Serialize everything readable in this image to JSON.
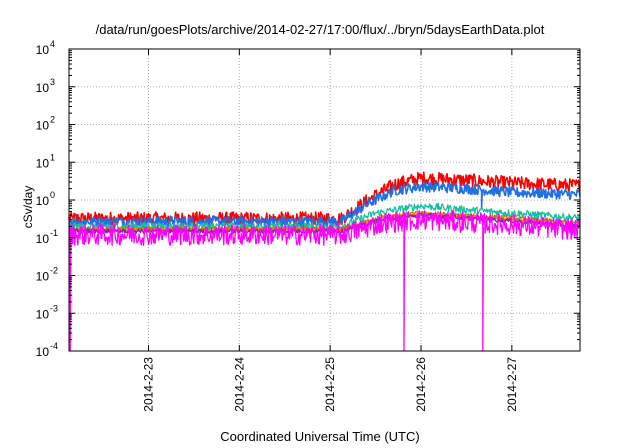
{
  "chart_data": {
    "type": "line",
    "title": "/data/run/goesPlots/archive/2014-02-27/17:00/flux/../bryn/5daysEarthData.plot",
    "xlabel": "Coordinated Universal Time (UTC)",
    "ylabel": "cSv/day",
    "yscale": "log",
    "ylim": [
      0.0001,
      10000
    ],
    "xlim": [
      "2014-02-22 03:00",
      "2014-02-27 18:00"
    ],
    "x_ticks": [
      "2014-2-23",
      "2014-2-24",
      "2014-2-25",
      "2014-2-26",
      "2014-2-27"
    ],
    "y_ticks": [
      {
        "value": 0.0001,
        "base": "10",
        "exp": "-4"
      },
      {
        "value": 0.001,
        "base": "10",
        "exp": "-3"
      },
      {
        "value": 0.01,
        "base": "10",
        "exp": "-2"
      },
      {
        "value": 0.1,
        "base": "10",
        "exp": "-1"
      },
      {
        "value": 1,
        "base": "10",
        "exp": "0"
      },
      {
        "value": 10,
        "base": "10",
        "exp": "1"
      },
      {
        "value": 100,
        "base": "10",
        "exp": "2"
      },
      {
        "value": 1000,
        "base": "10",
        "exp": "3"
      },
      {
        "value": 10000,
        "base": "10",
        "exp": "4"
      }
    ],
    "grid": true,
    "legend": "none",
    "series": [
      {
        "color": "#ff0000",
        "noise": 0.18,
        "points": [
          [
            "2014-02-22 03:00",
            0.32
          ],
          [
            "2014-02-25 03:00",
            0.32
          ],
          [
            "2014-02-25 10:00",
            1.0
          ],
          [
            "2014-02-25 17:00",
            2.6
          ],
          [
            "2014-02-26 00:00",
            3.8
          ],
          [
            "2014-02-26 12:00",
            3.3
          ],
          [
            "2014-02-27 00:00",
            2.8
          ],
          [
            "2014-02-27 18:00",
            2.4
          ]
        ]
      },
      {
        "color": "#1f6fe5",
        "noise": 0.14,
        "dips": [
          [
            "2014-02-26 16:00",
            0.6
          ]
        ],
        "points": [
          [
            "2014-02-22 03:00",
            0.27
          ],
          [
            "2014-02-25 03:00",
            0.27
          ],
          [
            "2014-02-25 10:00",
            0.8
          ],
          [
            "2014-02-25 17:00",
            1.8
          ],
          [
            "2014-02-26 00:00",
            2.3
          ],
          [
            "2014-02-26 12:00",
            2.0
          ],
          [
            "2014-02-27 00:00",
            1.6
          ],
          [
            "2014-02-27 18:00",
            1.4
          ]
        ]
      },
      {
        "color": "#19c0a0",
        "noise": 0.1,
        "points": [
          [
            "2014-02-22 03:00",
            0.2
          ],
          [
            "2014-02-25 03:00",
            0.2
          ],
          [
            "2014-02-25 12:00",
            0.45
          ],
          [
            "2014-02-26 00:00",
            0.7
          ],
          [
            "2014-02-26 12:00",
            0.55
          ],
          [
            "2014-02-27 00:00",
            0.45
          ],
          [
            "2014-02-27 18:00",
            0.33
          ]
        ]
      },
      {
        "color": "#9a8800",
        "noise": 0.06,
        "points": [
          [
            "2014-02-22 03:00",
            0.17
          ],
          [
            "2014-02-25 03:00",
            0.17
          ],
          [
            "2014-02-25 14:00",
            0.35
          ],
          [
            "2014-02-26 00:00",
            0.45
          ],
          [
            "2014-02-27 00:00",
            0.33
          ],
          [
            "2014-02-27 18:00",
            0.24
          ]
        ]
      },
      {
        "color": "#ff7f00",
        "noise": 0.06,
        "points": [
          [
            "2014-02-22 03:00",
            0.16
          ],
          [
            "2014-02-25 03:00",
            0.16
          ],
          [
            "2014-02-25 14:00",
            0.33
          ],
          [
            "2014-02-26 00:00",
            0.42
          ],
          [
            "2014-02-27 00:00",
            0.3
          ],
          [
            "2014-02-27 18:00",
            0.22
          ]
        ]
      },
      {
        "color": "#8a1fb0",
        "noise": 0.06,
        "points": [
          [
            "2014-02-22 03:00",
            0.15
          ],
          [
            "2014-02-25 03:00",
            0.15
          ],
          [
            "2014-02-25 14:00",
            0.31
          ],
          [
            "2014-02-26 00:00",
            0.4
          ],
          [
            "2014-02-27 00:00",
            0.28
          ],
          [
            "2014-02-27 18:00",
            0.2
          ]
        ]
      },
      {
        "color": "#ff00ff",
        "noise": 0.28,
        "dips": [
          [
            "2014-02-22 03:20",
            0.0001
          ],
          [
            "2014-02-25 19:30",
            0.0001
          ],
          [
            "2014-02-26 16:20",
            0.0001
          ]
        ],
        "points": [
          [
            "2014-02-22 03:00",
            0.12
          ],
          [
            "2014-02-25 03:00",
            0.12
          ],
          [
            "2014-02-25 14:00",
            0.25
          ],
          [
            "2014-02-26 00:00",
            0.3
          ],
          [
            "2014-02-27 00:00",
            0.22
          ],
          [
            "2014-02-27 18:00",
            0.16
          ]
        ]
      }
    ]
  }
}
